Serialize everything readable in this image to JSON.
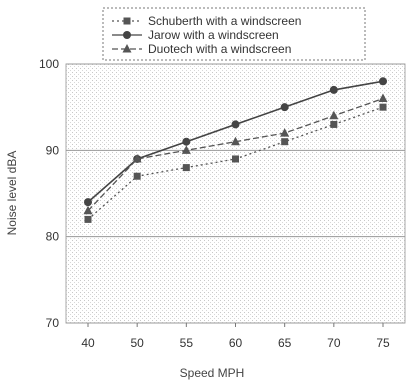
{
  "chart_data": {
    "type": "line",
    "title": "",
    "xlabel": "Speed MPH",
    "ylabel": "Noise level dBA",
    "categories": [
      "40",
      "50",
      "55",
      "60",
      "65",
      "70",
      "75"
    ],
    "ylim": [
      70,
      100
    ],
    "yticks": [
      "70",
      "80",
      "90",
      "100"
    ],
    "grid": true,
    "legend_position": "top",
    "series": [
      {
        "name": "Schuberth with a windscreen",
        "values": [
          82,
          87,
          88,
          89,
          91,
          93,
          95
        ],
        "marker": "square",
        "line_style": "dotted",
        "color": "#555555"
      },
      {
        "name": "Jarow with a windscreen",
        "values": [
          84,
          89,
          91,
          93,
          95,
          97,
          98
        ],
        "marker": "circle",
        "line_style": "solid",
        "color": "#444444"
      },
      {
        "name": "Duotech with a windscreen",
        "values": [
          83,
          89,
          90,
          91,
          92,
          94,
          96
        ],
        "marker": "triangle",
        "line_style": "dashed",
        "color": "#555555"
      }
    ]
  }
}
